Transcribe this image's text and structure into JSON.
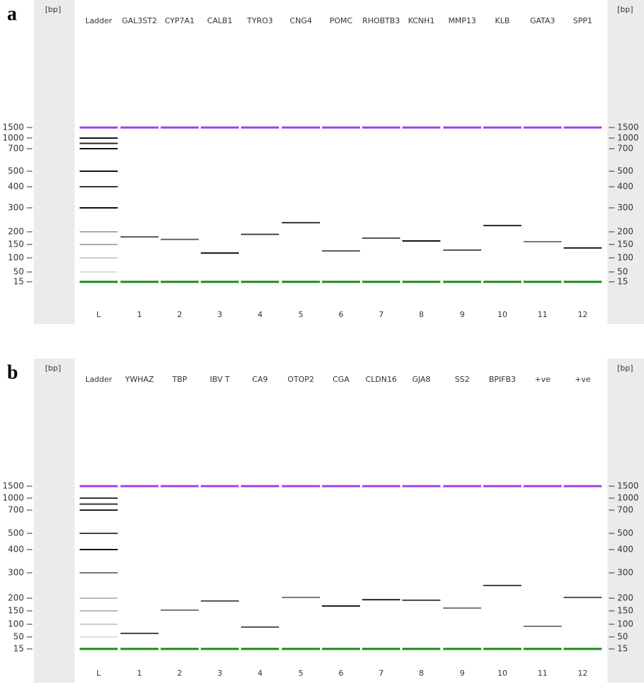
{
  "chart_data": [
    {
      "type": "gel",
      "panel_label": "a",
      "y_label": "[bp]",
      "categories": [
        "Ladder",
        "GAL3ST2",
        "CYP7A1",
        "CALB1",
        "TYRO3",
        "CNG4",
        "POMC",
        "RHOBTB3",
        "KCNH1",
        "MMP13",
        "KLB",
        "GATA3",
        "SPP1"
      ],
      "lanes": [
        "L",
        "1",
        "2",
        "3",
        "4",
        "5",
        "6",
        "7",
        "8",
        "9",
        "10",
        "11",
        "12"
      ],
      "values": [
        null,
        180,
        170,
        118,
        190,
        238,
        126,
        175,
        164,
        129,
        226,
        161,
        137
      ],
      "band_colors": [
        null,
        "#555",
        "#666",
        "#111",
        "#444",
        "#333",
        "#555",
        "#555",
        "#111",
        "#555",
        "#222",
        "#777",
        "#222"
      ],
      "ladder": [
        50,
        100,
        150,
        200,
        300,
        400,
        500,
        700,
        850,
        1000
      ],
      "ladder_colors": [
        "#ddd",
        "#ccc",
        "#aaa",
        "#aaa",
        "#111",
        "#333",
        "#111",
        "#111",
        "#222",
        "#111"
      ],
      "markers": [
        {
          "value": 1500,
          "color": "#a040e8"
        },
        {
          "value": 15,
          "color": "#1a8c1a"
        }
      ],
      "ylim": [
        15,
        1500
      ],
      "yticks": [
        1500,
        1000,
        700,
        500,
        400,
        300,
        200,
        150,
        100,
        50,
        15
      ]
    },
    {
      "type": "gel",
      "panel_label": "b",
      "y_label": "[bp]",
      "categories": [
        "Ladder",
        "YWHAZ",
        "TBP",
        "IBV T",
        "CA9",
        "OTOP2",
        "CGA",
        "CLDN16",
        "GJA8",
        "SS2",
        "BPIFB3",
        "+ve",
        "+ve"
      ],
      "lanes": [
        "L",
        "1",
        "2",
        "3",
        "4",
        "5",
        "6",
        "7",
        "8",
        "9",
        "10",
        "11",
        "12"
      ],
      "values": [
        null,
        64,
        153,
        189,
        89,
        203,
        169,
        194,
        192,
        161,
        250,
        92,
        203
      ],
      "band_colors": [
        null,
        "#444",
        "#777",
        "#555",
        "#555",
        "#777",
        "#111",
        "#222",
        "#444",
        "#777",
        "#444",
        "#777",
        "#555"
      ],
      "ladder": [
        50,
        100,
        150,
        200,
        300,
        400,
        500,
        700,
        850,
        1000
      ],
      "ladder_colors": [
        "#ddd",
        "#ccc",
        "#bbb",
        "#bbb",
        "#777",
        "#111",
        "#444",
        "#222",
        "#333",
        "#333"
      ],
      "markers": [
        {
          "value": 1500,
          "color": "#a040e8"
        },
        {
          "value": 15,
          "color": "#1a8c1a"
        }
      ],
      "ylim": [
        15,
        1500
      ],
      "yticks": [
        1500,
        1000,
        700,
        500,
        400,
        300,
        200,
        150,
        100,
        50,
        15
      ]
    }
  ]
}
